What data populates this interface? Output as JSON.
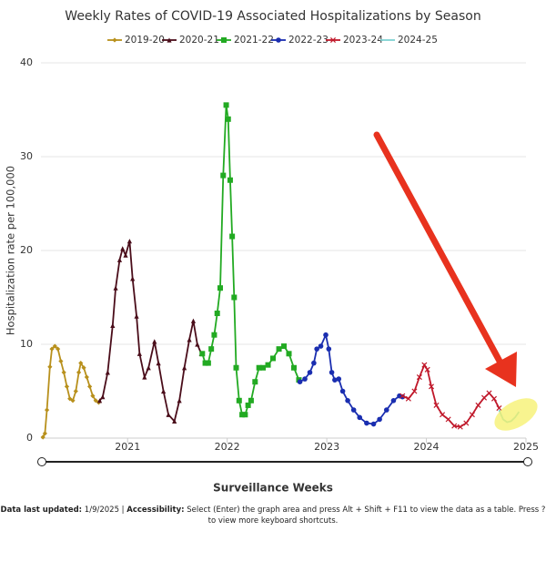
{
  "chart_data": {
    "type": "line",
    "title": "Weekly Rates of COVID-19 Associated Hospitalizations by Season",
    "x_label": "Surveillance Weeks",
    "y_label": "Hospitalization rate per 100,000",
    "xlim": [
      2020.13,
      2025
    ],
    "xticks": [
      2021,
      2022,
      2023,
      2024,
      2025
    ],
    "ylim": [
      0,
      40
    ],
    "yticks": [
      0,
      10,
      20,
      30,
      40
    ],
    "grid": true,
    "legend": "top",
    "series": [
      {
        "name": "2019-20",
        "color": "#b8901c",
        "marker": "diamond",
        "x": [
          2020.15,
          2020.17,
          2020.19,
          2020.22,
          2020.24,
          2020.27,
          2020.3,
          2020.33,
          2020.36,
          2020.39,
          2020.42,
          2020.45,
          2020.48,
          2020.51,
          2020.53,
          2020.56,
          2020.59,
          2020.62,
          2020.65,
          2020.68,
          2020.71
        ],
        "values": [
          0.1,
          0.5,
          3,
          7.6,
          9.5,
          9.8,
          9.5,
          8.2,
          7,
          5.5,
          4.2,
          4,
          5,
          7,
          8,
          7.5,
          6.5,
          5.5,
          4.5,
          4,
          3.8
        ]
      },
      {
        "name": "2020-21",
        "color": "#4a0d1a",
        "marker": "triangle",
        "x": [
          2020.72,
          2020.75,
          2020.8,
          2020.85,
          2020.88,
          2020.92,
          2020.95,
          2020.98,
          2021.02,
          2021.05,
          2021.09,
          2021.12,
          2021.17,
          2021.21,
          2021.27,
          2021.31,
          2021.36,
          2021.41,
          2021.47,
          2021.52,
          2021.57,
          2021.62,
          2021.66,
          2021.7,
          2021.74
        ],
        "values": [
          4,
          4.4,
          7,
          12,
          16,
          19,
          20.2,
          19.5,
          21,
          17,
          13,
          9,
          6.5,
          7.5,
          10.3,
          8,
          5,
          2.5,
          1.8,
          4,
          7.5,
          10.5,
          12.5,
          10,
          9
        ]
      },
      {
        "name": "2021-22",
        "color": "#22aa22",
        "marker": "square",
        "x": [
          2021.75,
          2021.78,
          2021.81,
          2021.84,
          2021.87,
          2021.9,
          2021.93,
          2021.96,
          2021.99,
          2022.01,
          2022.03,
          2022.05,
          2022.07,
          2022.09,
          2022.12,
          2022.15,
          2022.18,
          2022.21,
          2022.24,
          2022.28,
          2022.32,
          2022.36,
          2022.41,
          2022.46,
          2022.52,
          2022.57,
          2022.62,
          2022.67,
          2022.72
        ],
        "values": [
          9,
          8,
          8,
          9.5,
          11,
          13.3,
          16,
          28,
          35.5,
          34,
          27.5,
          21.5,
          15,
          7.5,
          4,
          2.5,
          2.5,
          3.5,
          4,
          6,
          7.5,
          7.5,
          7.8,
          8.5,
          9.5,
          9.8,
          9,
          7.5,
          6.2
        ]
      },
      {
        "name": "2022-23",
        "color": "#1a2eb0",
        "marker": "circle",
        "x": [
          2022.73,
          2022.78,
          2022.83,
          2022.87,
          2022.9,
          2022.94,
          2022.99,
          2023.02,
          2023.05,
          2023.08,
          2023.12,
          2023.16,
          2023.21,
          2023.27,
          2023.33,
          2023.4,
          2023.47,
          2023.53,
          2023.6,
          2023.67,
          2023.73,
          2023.76
        ],
        "values": [
          6,
          6.3,
          7,
          8,
          9.5,
          9.8,
          11,
          9.5,
          7,
          6.2,
          6.3,
          5,
          4,
          3,
          2.2,
          1.6,
          1.5,
          2,
          3,
          4,
          4.5,
          4.4
        ]
      },
      {
        "name": "2023-24",
        "color": "#c0182a",
        "marker": "x",
        "x": [
          2023.76,
          2023.82,
          2023.88,
          2023.93,
          2023.98,
          2024.01,
          2024.05,
          2024.1,
          2024.16,
          2024.22,
          2024.28,
          2024.34,
          2024.4,
          2024.46,
          2024.52,
          2024.58,
          2024.63,
          2024.68,
          2024.73
        ],
        "values": [
          4.5,
          4.2,
          5,
          6.5,
          7.8,
          7.3,
          5.5,
          3.5,
          2.5,
          2,
          1.3,
          1.2,
          1.6,
          2.5,
          3.5,
          4.3,
          4.8,
          4.2,
          3.2
        ]
      },
      {
        "name": "2024-25",
        "color": "#7fd3d3",
        "marker": "none",
        "x": [
          2024.73,
          2024.77,
          2024.81,
          2024.85,
          2024.89,
          2024.93
        ],
        "values": [
          3,
          2,
          1.7,
          1.8,
          2.2,
          2.8
        ]
      }
    ]
  },
  "footnote": {
    "updated_label": "Data last updated:",
    "updated_value": "1/9/2025 |",
    "accessibility_label": "Accessibility:",
    "accessibility_text": "Select (Enter) the graph area and press Alt + Shift + F11 to view the data as a table. Press ? to view more keyboard shortcuts."
  }
}
